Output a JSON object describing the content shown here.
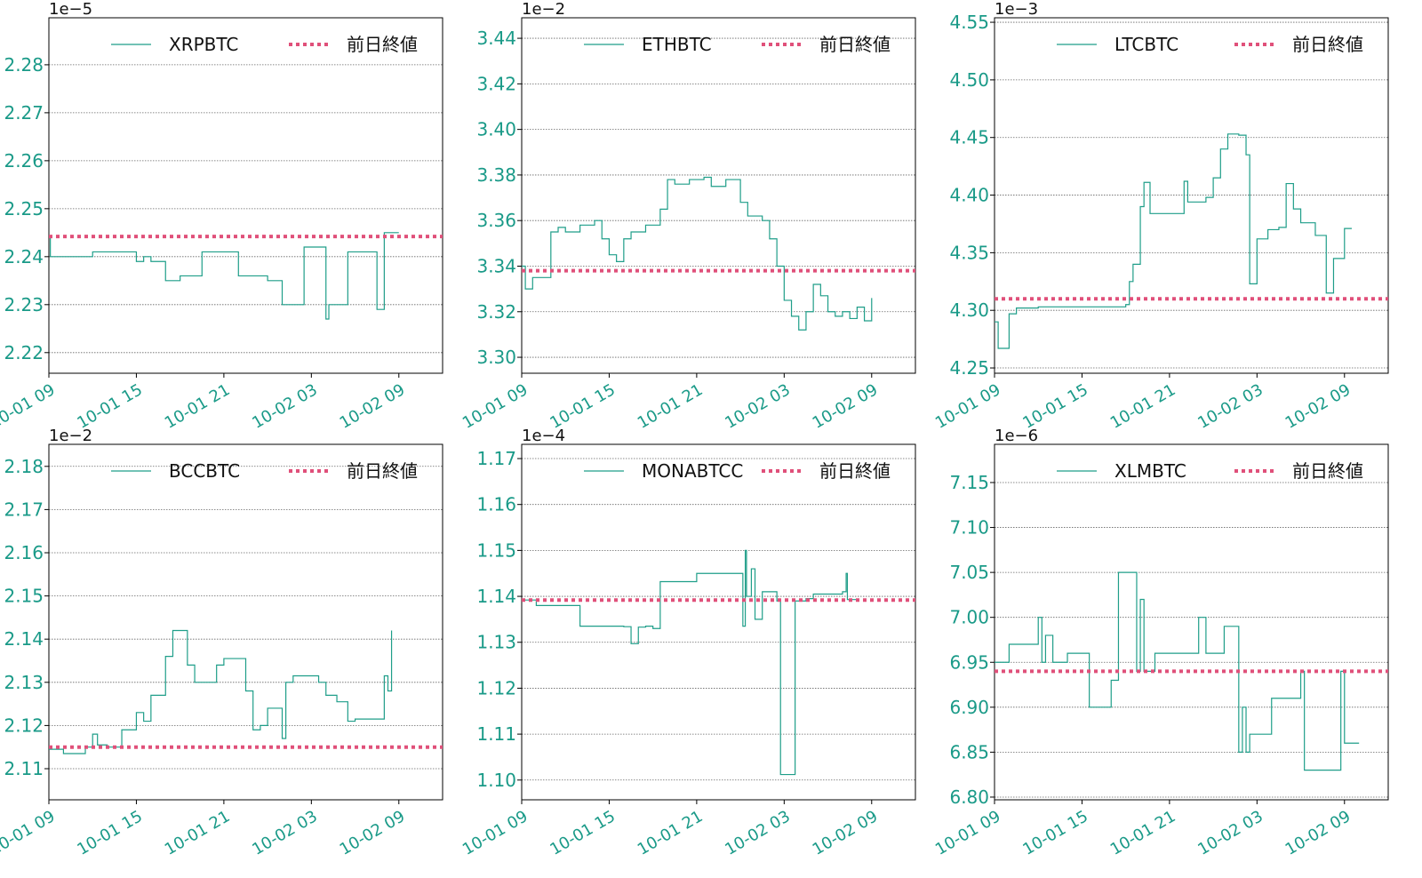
{
  "chart_data": [
    {
      "type": "line",
      "drawstyle": "steps-post",
      "offset_label": "1e−5",
      "grid": true,
      "xlim": [
        "10-01 09:00",
        "10-02 12:00"
      ],
      "xticks": [
        "10-01 09",
        "10-01 15",
        "10-01 21",
        "10-02 03",
        "10-02 09"
      ],
      "ylim": [
        2.2157,
        2.2898
      ],
      "yticks": [
        2.22,
        2.23,
        2.24,
        2.25,
        2.26,
        2.27,
        2.28
      ],
      "series": [
        {
          "name": "XRPBTC",
          "color": "#1f9e89",
          "x": [
            "10-01 09:00",
            "10-01 09:06",
            "10-01 12:00",
            "10-01 15:00",
            "10-01 15:30",
            "10-01 16:00",
            "10-01 17:00",
            "10-01 18:00",
            "10-01 19:30",
            "10-01 22:00",
            "10-02 00:00",
            "10-02 01:00",
            "10-02 02:30",
            "10-02 04:00",
            "10-02 04:12",
            "10-02 05:30",
            "10-02 07:30",
            "10-02 08:00",
            "10-02 09:00"
          ],
          "values": [
            2.244,
            2.24,
            2.241,
            2.239,
            2.24,
            2.239,
            2.235,
            2.236,
            2.241,
            2.236,
            2.235,
            2.23,
            2.242,
            2.227,
            2.23,
            2.241,
            2.229,
            2.245,
            2.245
          ]
        },
        {
          "name": "前日終値",
          "color": "#e0507a",
          "linestyle": "dotted",
          "values": [
            2.2442
          ]
        }
      ]
    },
    {
      "type": "line",
      "drawstyle": "steps-post",
      "offset_label": "1e−2",
      "grid": true,
      "xlim": [
        "10-01 09:00",
        "10-02 12:00"
      ],
      "xticks": [
        "10-01 09",
        "10-01 15",
        "10-01 21",
        "10-02 03",
        "10-02 09"
      ],
      "ylim": [
        3.293,
        3.449
      ],
      "yticks": [
        {
          "value": 3.3,
          "label": "3.30"
        },
        3.32,
        3.34,
        3.36,
        3.38,
        {
          "value": 3.4,
          "label": "3.40"
        },
        3.42,
        3.44
      ],
      "series": [
        {
          "name": "ETHBTC",
          "color": "#1f9e89",
          "x": [
            "10-01 09:00",
            "10-01 09:15",
            "10-01 09:45",
            "10-01 11:00",
            "10-01 11:30",
            "10-01 12:00",
            "10-01 13:00",
            "10-01 14:00",
            "10-01 14:30",
            "10-01 15:00",
            "10-01 15:30",
            "10-01 16:00",
            "10-01 16:30",
            "10-01 17:30",
            "10-01 18:30",
            "10-01 19:00",
            "10-01 19:30",
            "10-01 20:30",
            "10-01 21:30",
            "10-01 22:00",
            "10-01 23:00",
            "10-02 00:00",
            "10-02 00:30",
            "10-02 01:30",
            "10-02 02:00",
            "10-02 02:30",
            "10-02 03:00",
            "10-02 03:30",
            "10-02 04:00",
            "10-02 04:30",
            "10-02 05:00",
            "10-02 05:30",
            "10-02 06:00",
            "10-02 06:30",
            "10-02 07:00",
            "10-02 07:30",
            "10-02 08:00",
            "10-02 08:30",
            "10-02 09:00"
          ],
          "values": [
            3.34,
            3.33,
            3.335,
            3.355,
            3.357,
            3.355,
            3.358,
            3.36,
            3.352,
            3.345,
            3.342,
            3.352,
            3.355,
            3.358,
            3.365,
            3.378,
            3.376,
            3.378,
            3.379,
            3.375,
            3.378,
            3.368,
            3.362,
            3.36,
            3.352,
            3.34,
            3.325,
            3.318,
            3.312,
            3.32,
            3.332,
            3.327,
            3.32,
            3.318,
            3.32,
            3.317,
            3.322,
            3.316,
            3.326
          ]
        },
        {
          "name": "前日終値",
          "color": "#e0507a",
          "linestyle": "dotted",
          "values": [
            3.338
          ]
        }
      ]
    },
    {
      "type": "line",
      "drawstyle": "steps-post",
      "offset_label": "1e−3",
      "grid": true,
      "xlim": [
        "10-01 09:00",
        "10-02 12:00"
      ],
      "xticks": [
        "10-01 09",
        "10-01 15",
        "10-01 21",
        "10-02 03",
        "10-02 09"
      ],
      "ylim": [
        4.2454,
        4.5539
      ],
      "yticks": [
        4.25,
        {
          "value": 4.3,
          "label": "4.30"
        },
        4.35,
        {
          "value": 4.4,
          "label": "4.40"
        },
        4.45,
        {
          "value": 4.5,
          "label": "4.50"
        },
        4.55
      ],
      "series": [
        {
          "name": "LTCBTC",
          "color": "#1f9e89",
          "x": [
            "10-01 09:00",
            "10-01 09:15",
            "10-01 10:00",
            "10-01 10:30",
            "10-01 12:00",
            "10-01 18:00",
            "10-01 18:15",
            "10-01 18:30",
            "10-01 19:00",
            "10-01 19:15",
            "10-01 19:40",
            "10-01 22:00",
            "10-01 22:15",
            "10-01 23:30",
            "10-02 00:00",
            "10-02 00:30",
            "10-02 01:00",
            "10-02 01:45",
            "10-02 02:15",
            "10-02 02:30",
            "10-02 03:00",
            "10-02 03:45",
            "10-02 04:30",
            "10-02 05:00",
            "10-02 05:30",
            "10-02 06:00",
            "10-02 07:00",
            "10-02 07:45",
            "10-02 08:15",
            "10-02 09:00",
            "10-02 09:30"
          ],
          "values": [
            4.29,
            4.267,
            4.297,
            4.302,
            4.303,
            4.305,
            4.325,
            4.34,
            4.39,
            4.411,
            4.384,
            4.412,
            4.394,
            4.398,
            4.415,
            4.44,
            4.453,
            4.452,
            4.435,
            4.323,
            4.362,
            4.37,
            4.372,
            4.41,
            4.388,
            4.376,
            4.365,
            4.315,
            4.345,
            4.371,
            4.371
          ]
        },
        {
          "name": "前日終値",
          "color": "#e0507a",
          "linestyle": "dotted",
          "values": [
            4.31
          ]
        }
      ]
    },
    {
      "type": "line",
      "drawstyle": "steps-post",
      "offset_label": "1e−2",
      "grid": true,
      "xlim": [
        "10-01 09:00",
        "10-02 12:00"
      ],
      "xticks": [
        "10-01 09",
        "10-01 15",
        "10-01 21",
        "10-02 03",
        "10-02 09"
      ],
      "ylim": [
        2.1028,
        2.1851
      ],
      "yticks": [
        2.11,
        2.12,
        2.13,
        2.14,
        2.15,
        2.16,
        2.17,
        2.18
      ],
      "series": [
        {
          "name": "BCCBTC",
          "color": "#1f9e89",
          "x": [
            "10-01 09:00",
            "10-01 10:00",
            "10-01 11:30",
            "10-01 12:00",
            "10-01 12:20",
            "10-01 13:00",
            "10-01 14:00",
            "10-01 15:00",
            "10-01 15:30",
            "10-01 16:00",
            "10-01 17:00",
            "10-01 17:30",
            "10-01 18:30",
            "10-01 19:00",
            "10-01 20:30",
            "10-01 21:00",
            "10-01 22:30",
            "10-01 23:00",
            "10-01 23:30",
            "10-02 00:00",
            "10-02 01:00",
            "10-02 01:15",
            "10-02 01:45",
            "10-02 03:30",
            "10-02 04:00",
            "10-02 04:45",
            "10-02 05:30",
            "10-02 06:00",
            "10-02 08:00",
            "10-02 08:15",
            "10-02 08:30"
          ],
          "values": [
            2.1145,
            2.1135,
            2.115,
            2.118,
            2.1155,
            2.115,
            2.119,
            2.123,
            2.121,
            2.127,
            2.136,
            2.142,
            2.134,
            2.13,
            2.134,
            2.1355,
            2.128,
            2.119,
            2.12,
            2.124,
            2.117,
            2.13,
            2.1315,
            2.13,
            2.127,
            2.1255,
            2.121,
            2.1215,
            2.1315,
            2.128,
            2.142
          ]
        },
        {
          "name": "前日終値",
          "color": "#e0507a",
          "linestyle": "dotted",
          "values": [
            2.115
          ]
        }
      ]
    },
    {
      "type": "line",
      "drawstyle": "steps-post",
      "offset_label": "1e−4",
      "grid": true,
      "xlim": [
        "10-01 09:00",
        "10-02 12:00"
      ],
      "xticks": [
        "10-01 09",
        "10-01 15",
        "10-01 21",
        "10-02 03",
        "10-02 09"
      ],
      "ylim": [
        1.0957,
        1.1731
      ],
      "yticks": [
        {
          "value": 1.1,
          "label": "1.10"
        },
        1.11,
        1.12,
        1.13,
        1.14,
        1.15,
        1.16,
        1.17
      ],
      "series": [
        {
          "name": "MONABTCC",
          "color": "#1f9e89",
          "x": [
            "10-01 09:00",
            "10-01 10:00",
            "10-01 13:00",
            "10-01 16:00",
            "10-01 16:30",
            "10-01 17:00",
            "10-01 17:30",
            "10-01 18:00",
            "10-01 18:30",
            "10-01 21:00",
            "10-02 00:00",
            "10-02 00:10",
            "10-02 00:20",
            "10-02 00:25",
            "10-02 00:45",
            "10-02 01:00",
            "10-02 01:30",
            "10-02 02:30",
            "10-02 02:45",
            "10-02 03:45",
            "10-02 04:30",
            "10-02 05:00",
            "10-02 07:00",
            "10-02 07:15",
            "10-02 07:20",
            "10-02 08:00"
          ],
          "values": [
            1.1392,
            1.138,
            1.1335,
            1.1334,
            1.1297,
            1.1333,
            1.1335,
            1.133,
            1.1432,
            1.145,
            1.145,
            1.1335,
            1.15,
            1.14,
            1.146,
            1.135,
            1.141,
            1.139,
            1.1012,
            1.139,
            1.1395,
            1.1405,
            1.141,
            1.145,
            1.1393,
            1.1393
          ]
        },
        {
          "name": "前日終値",
          "color": "#e0507a",
          "linestyle": "dotted",
          "values": [
            1.1392
          ]
        }
      ]
    },
    {
      "type": "line",
      "drawstyle": "steps-post",
      "offset_label": "1e−6",
      "grid": true,
      "xlim": [
        "10-01 09:00",
        "10-02 12:00"
      ],
      "xticks": [
        "10-01 09",
        "10-01 15",
        "10-01 21",
        "10-02 03",
        "10-02 09"
      ],
      "ylim": [
        6.797,
        7.1925
      ],
      "yticks": [
        {
          "value": 6.8,
          "label": "6.80"
        },
        6.85,
        {
          "value": 6.9,
          "label": "6.90"
        },
        6.95,
        {
          "value": 7.0,
          "label": "7.00"
        },
        7.05,
        {
          "value": 7.1,
          "label": "7.10"
        },
        7.15
      ],
      "series": [
        {
          "name": "XLMBTC",
          "color": "#1f9e89",
          "x": [
            "10-01 09:00",
            "10-01 10:00",
            "10-01 12:00",
            "10-01 12:15",
            "10-01 12:30",
            "10-01 13:00",
            "10-01 14:00",
            "10-01 15:30",
            "10-01 17:00",
            "10-01 17:30",
            "10-01 18:45",
            "10-01 19:00",
            "10-01 19:15",
            "10-01 20:00",
            "10-01 23:00",
            "10-01 23:30",
            "10-02 00:45",
            "10-02 01:45",
            "10-02 02:00",
            "10-02 02:15",
            "10-02 02:30",
            "10-02 04:00",
            "10-02 06:00",
            "10-02 06:15",
            "10-02 08:45",
            "10-02 09:00",
            "10-02 10:00"
          ],
          "values": [
            6.95,
            6.97,
            7.0,
            6.95,
            6.98,
            6.95,
            6.96,
            6.9,
            6.93,
            7.05,
            6.94,
            7.02,
            6.94,
            6.96,
            7.0,
            6.96,
            6.99,
            6.85,
            6.9,
            6.85,
            6.87,
            6.91,
            6.94,
            6.83,
            6.94,
            6.86,
            6.86
          ]
        },
        {
          "name": "前日終値",
          "color": "#e0507a",
          "linestyle": "dotted",
          "values": [
            6.94
          ]
        }
      ]
    }
  ]
}
